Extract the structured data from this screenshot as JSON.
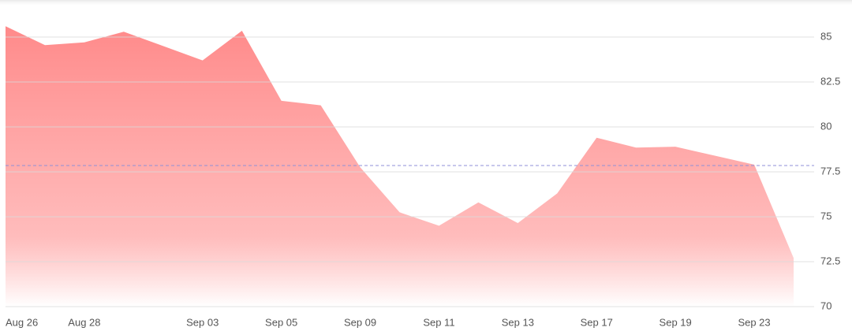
{
  "chart_data": {
    "type": "area",
    "categories": [
      "Aug 26",
      null,
      "Aug 28",
      null,
      null,
      "Sep 03",
      null,
      "Sep 05",
      null,
      "Sep 09",
      null,
      "Sep 11",
      null,
      "Sep 13",
      null,
      "Sep 17",
      null,
      "Sep 19",
      null,
      "Sep 23",
      null
    ],
    "values": [
      85.6,
      84.55,
      84.7,
      85.3,
      84.5,
      83.7,
      85.35,
      81.45,
      81.2,
      77.75,
      75.25,
      74.5,
      75.8,
      74.65,
      76.3,
      79.4,
      78.85,
      78.9,
      78.4,
      77.9,
      72.7
    ],
    "color": "#ff8a8a",
    "reference_line": 77.85,
    "ylim": [
      70,
      87
    ],
    "yticks": [
      70,
      72.5,
      75,
      77.5,
      80,
      82.5,
      85
    ],
    "grid": true
  }
}
